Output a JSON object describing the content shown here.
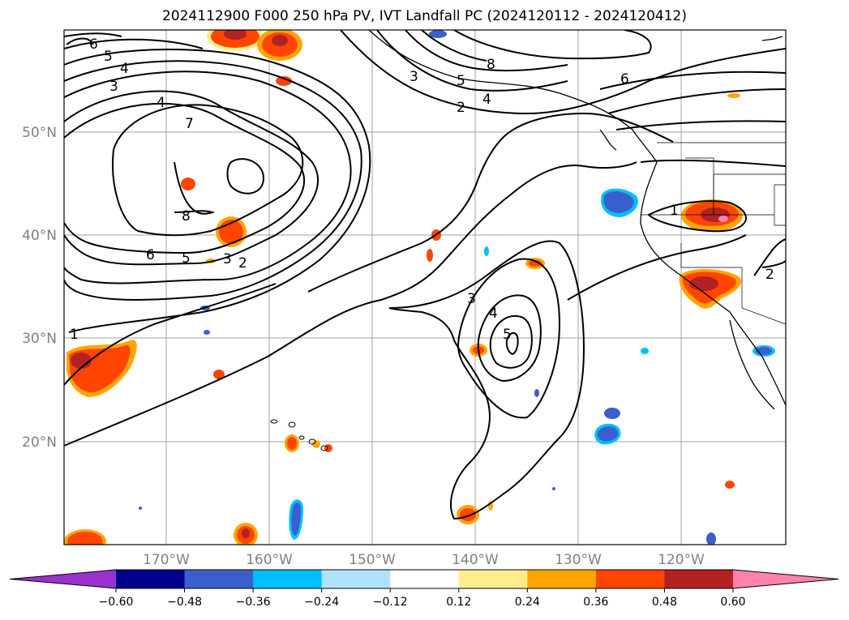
{
  "title": "2024112900 F000 250 hPa PV, IVT Landfall PC (2024120112 - 2024120412)",
  "map": {
    "lat_labels": [
      "50°N",
      "40°N",
      "30°N",
      "20°N"
    ],
    "lon_labels": [
      "170°W",
      "160°W",
      "150°W",
      "140°W",
      "130°W",
      "120°W"
    ]
  },
  "contour_labels": [
    "6",
    "5",
    "4",
    "3",
    "4",
    "7",
    "8",
    "6",
    "5",
    "3",
    "2",
    "1",
    "3",
    "5",
    "8",
    "4",
    "2",
    "6",
    "3",
    "4",
    "5",
    "1",
    "2"
  ],
  "colorbar": {
    "tick_labels": [
      "−0.60",
      "−0.48",
      "−0.36",
      "−0.24",
      "−0.12",
      "0.12",
      "0.24",
      "0.36",
      "0.48",
      "0.60"
    ],
    "colors": [
      "#9932cc",
      "#00008b",
      "#3a5fcd",
      "#00bfff",
      "#b0e2ff",
      "#ffffff",
      "#ffec8b",
      "#ffa500",
      "#ff4500",
      "#b22222",
      "#ff82ab"
    ]
  }
}
